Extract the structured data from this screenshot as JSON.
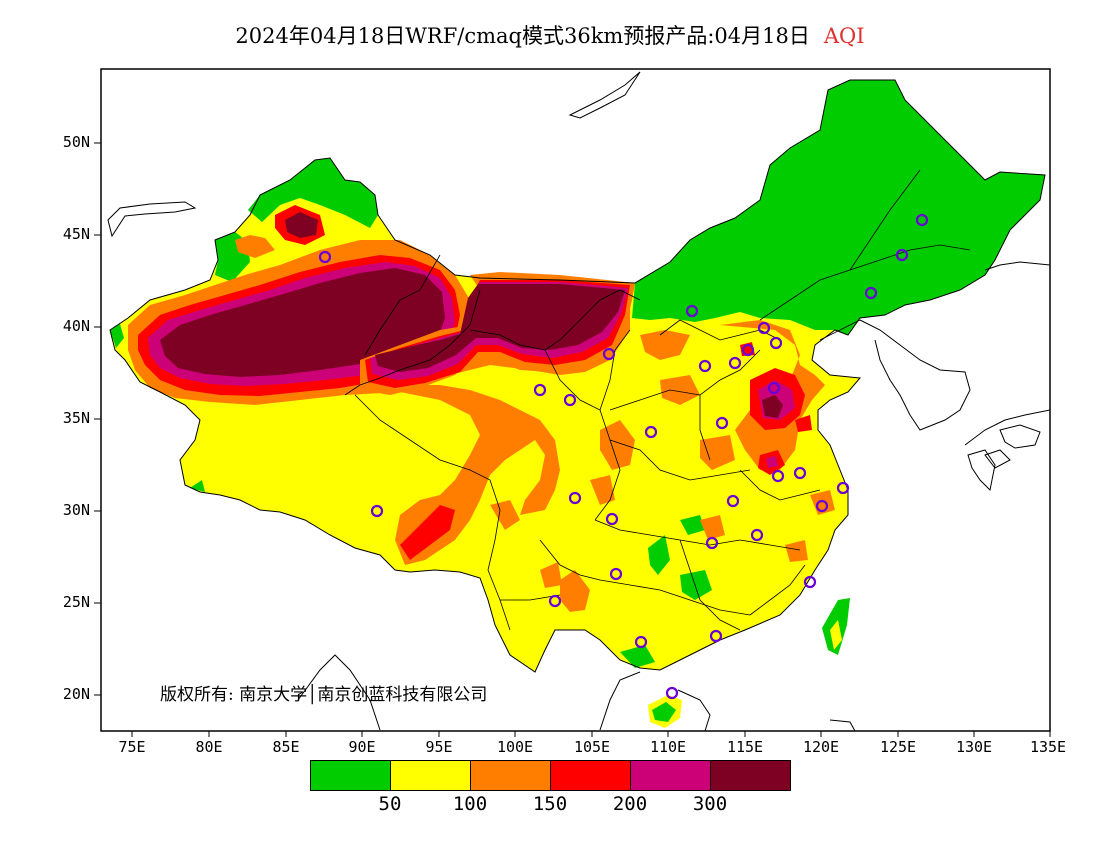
{
  "title": {
    "main": "2024年04月18日WRF/cmaq模式36km预报产品:04月18日",
    "variable": "AQI",
    "variable_color": "#e03030"
  },
  "map": {
    "lat_labels": [
      "50N",
      "45N",
      "40N",
      "35N",
      "30N",
      "25N",
      "20N"
    ],
    "lon_labels": [
      "75E",
      "80E",
      "85E",
      "90E",
      "95E",
      "100E",
      "105E",
      "110E",
      "115E",
      "120E",
      "125E",
      "130E",
      "135E"
    ],
    "lon_range": [
      73,
      135
    ],
    "lat_range": [
      18,
      54
    ]
  },
  "credit": "版权所有: 南京大学│南京创蓝科技有限公司",
  "legend": {
    "colors": [
      "#00cc00",
      "#ffff00",
      "#ff7e00",
      "#ff0000",
      "#cc0077",
      "#7e0023"
    ],
    "labels": [
      "50",
      "100",
      "150",
      "200",
      "300"
    ]
  }
}
